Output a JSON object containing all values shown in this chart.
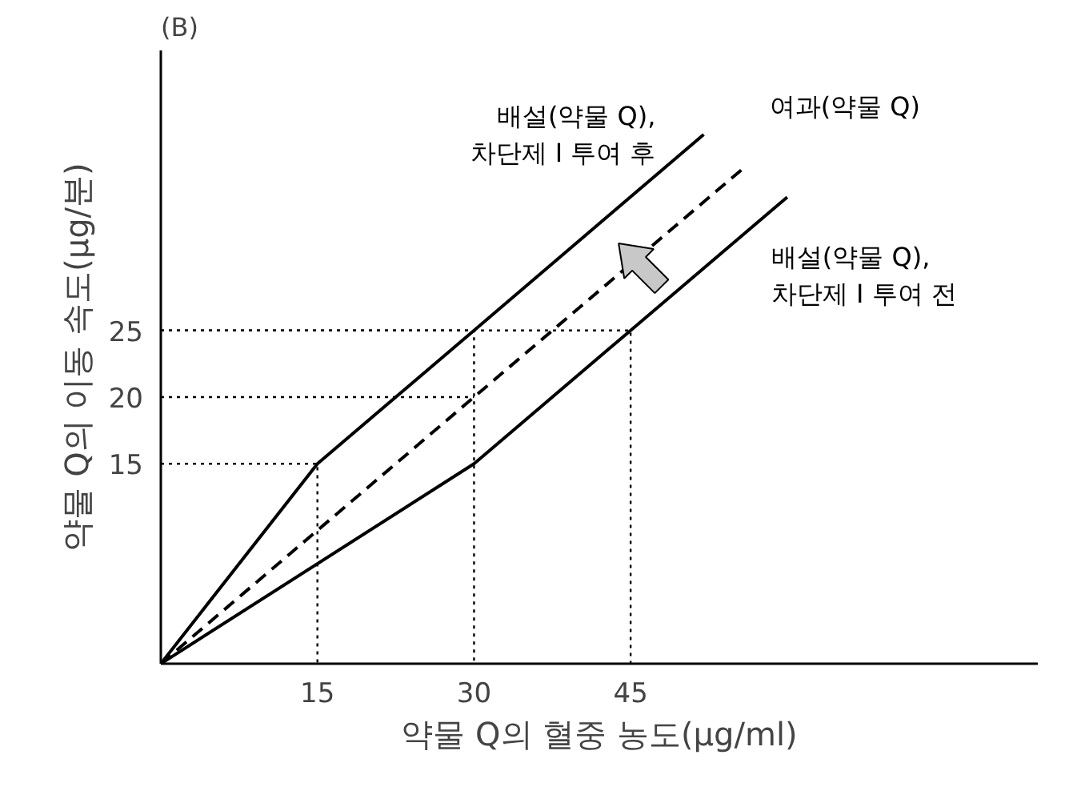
{
  "chart_data": {
    "type": "line",
    "title": "(B)",
    "xlabel": "약물 Q의 혈중 농도(μg/ml)",
    "ylabel": "약물 Q의 이동 속도(μg/분)",
    "xlim": [
      0,
      84
    ],
    "ylim": [
      0,
      46
    ],
    "xticks": [
      15,
      30,
      45
    ],
    "yticks": [
      15,
      20,
      25
    ],
    "marker": "none",
    "series": [
      {
        "name": "배설(약물 Q),\n차단제 I 투여 후",
        "x": [
          0,
          15,
          30,
          52
        ],
        "values": [
          0,
          15,
          25,
          39.7
        ],
        "color": "#000000",
        "line_style": "solid"
      },
      {
        "name": "여과(약물 Q)",
        "x": [
          0,
          30,
          56
        ],
        "values": [
          0,
          20,
          37.3
        ],
        "color": "#000000",
        "line_style": "dashed"
      },
      {
        "name": "배설(약물 Q),\n차단제 I 투여 전",
        "x": [
          0,
          30,
          45,
          60
        ],
        "values": [
          0,
          15,
          25,
          35
        ],
        "color": "#000000",
        "line_style": "solid"
      },
      {
        "x": [
          0,
          15,
          15
        ],
        "values": [
          15,
          15,
          0
        ],
        "color": "#000000",
        "line_style": "dotted"
      },
      {
        "x": [
          0,
          30
        ],
        "values": [
          20,
          20
        ],
        "color": "#000000",
        "line_style": "dotted"
      },
      {
        "x": [
          0,
          30,
          30
        ],
        "values": [
          25,
          25,
          0
        ],
        "color": "#000000",
        "line_style": "dotted"
      },
      {
        "x": [
          0,
          45,
          45
        ],
        "values": [
          25,
          25,
          0
        ],
        "color": "#000000",
        "line_style": "dotted"
      }
    ]
  }
}
